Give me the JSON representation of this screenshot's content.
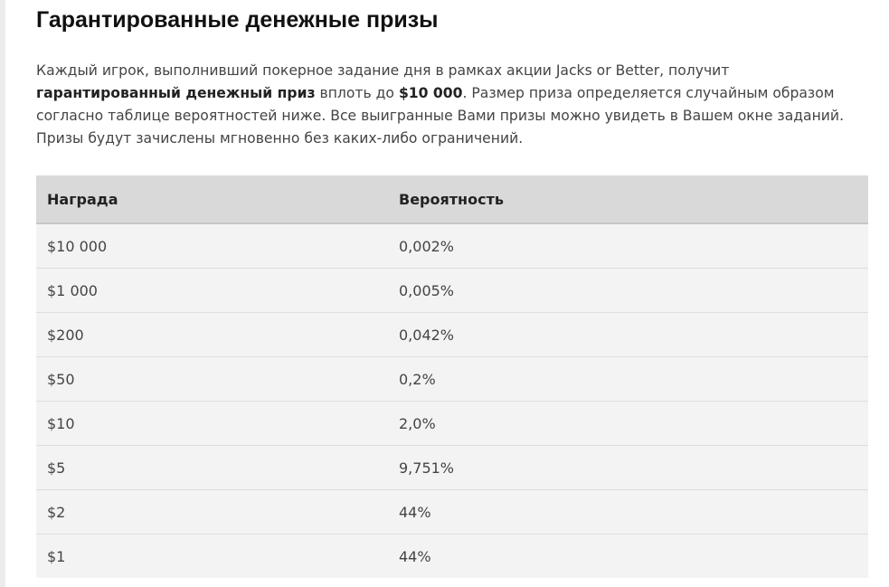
{
  "title": "Гарантированные денежные призы",
  "intro": {
    "part1": "Каждый игрок, выполнивший покерное задание дня в рамках акции Jacks or Better, получит ",
    "bold1": "гарантированный денежный приз",
    "part2": " вплоть до ",
    "bold2": "$10 000",
    "part3": ". Размер приза определяется случайным образом согласно таблице вероятностей ниже. Все выигранные Вами призы можно увидеть в Вашем окне заданий. Призы будут зачислены мгновенно без каких-либо ограничений."
  },
  "table": {
    "headers": [
      "Награда",
      "Вероятность"
    ],
    "rows": [
      [
        "$10 000",
        "0,002%"
      ],
      [
        "$1 000",
        "0,005%"
      ],
      [
        "$200",
        "0,042%"
      ],
      [
        "$50",
        "0,2%"
      ],
      [
        "$10",
        "2,0%"
      ],
      [
        "$5",
        "9,751%"
      ],
      [
        "$2",
        "44%"
      ],
      [
        "$1",
        "44%"
      ]
    ]
  }
}
